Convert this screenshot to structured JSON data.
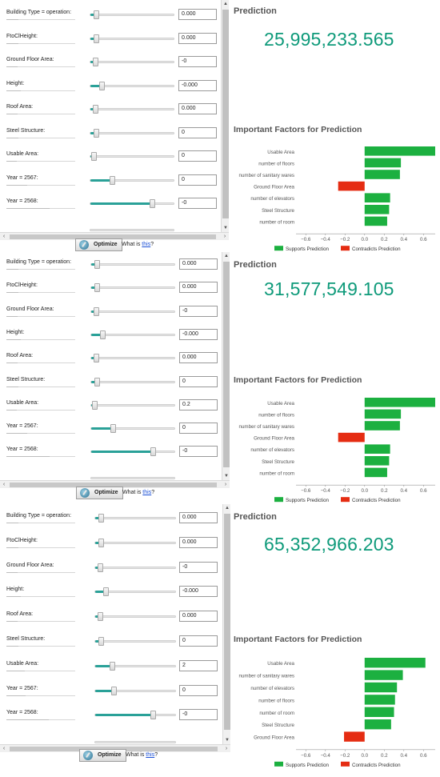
{
  "optimize_label": "Optimize",
  "whatis_prefix": "What is ",
  "whatis_link": "this",
  "whatis_suffix": "?",
  "prediction_title": "Prediction",
  "factors_title": "Important Factors for Prediction",
  "legend_supports": "Supports Prediction",
  "legend_contradicts": "Contradicts Prediction",
  "colors": {
    "supports": "#1cb040",
    "contradicts": "#e52c12",
    "prediction_value": "#0e9a7a",
    "slider_fill": "#2aa198"
  },
  "panels": [
    {
      "prediction": "25,995,233.565",
      "rows": [
        {
          "label": "Building Type = operation:",
          "value": "0.000",
          "slider": 0.08
        },
        {
          "label": "FtoClHeight:",
          "value": "0.000",
          "slider": 0.08
        },
        {
          "label": "Ground Floor Area:",
          "value": "-0",
          "slider": 0.07
        },
        {
          "label": "Height:",
          "value": "-0.000",
          "slider": 0.14
        },
        {
          "label": "Roof Area:",
          "value": "0.000",
          "slider": 0.07
        },
        {
          "label": "Steel Structure:",
          "value": "0",
          "slider": 0.08
        },
        {
          "label": "Usable Area:",
          "value": "0",
          "slider": 0.05
        },
        {
          "label": "Year = 2567:",
          "value": "0",
          "slider": 0.26
        },
        {
          "label": "Year = 2568:",
          "value": "-0",
          "slider": 0.74
        }
      ],
      "chart_data": {
        "type": "bar",
        "categories": [
          "Usable Area",
          "number of floors",
          "number of sanitary wares",
          "Ground Floor Area",
          "number of elevators",
          "Steel Structure",
          "number of room"
        ],
        "values": [
          0.72,
          0.37,
          0.36,
          -0.27,
          0.26,
          0.25,
          0.23
        ],
        "xlim": [
          -0.7,
          0.72
        ],
        "xticks": [
          -0.6,
          -0.4,
          -0.2,
          0.0,
          0.2,
          0.4,
          0.6
        ],
        "xtick_labels": [
          "−0.6",
          "−0.4",
          "−0.2",
          "0.0",
          "0.2",
          "0.4",
          "0.6"
        ],
        "legend": "bottom"
      }
    },
    {
      "prediction": "31,577,549.105",
      "rows": [
        {
          "label": "Building Type = operation:",
          "value": "0.000",
          "slider": 0.08
        },
        {
          "label": "FtoClHeight:",
          "value": "0.000",
          "slider": 0.08
        },
        {
          "label": "Ground Floor Area:",
          "value": "-0",
          "slider": 0.07
        },
        {
          "label": "Height:",
          "value": "-0.000",
          "slider": 0.14
        },
        {
          "label": "Roof Area:",
          "value": "0.000",
          "slider": 0.07
        },
        {
          "label": "Steel Structure:",
          "value": "0",
          "slider": 0.08
        },
        {
          "label": "Usable Area:",
          "value": "0.2",
          "slider": 0.05
        },
        {
          "label": "Year = 2567:",
          "value": "0",
          "slider": 0.26
        },
        {
          "label": "Year = 2568:",
          "value": "-0",
          "slider": 0.74
        }
      ],
      "chart_data": {
        "type": "bar",
        "categories": [
          "Usable Area",
          "number of floors",
          "number of sanitary wares",
          "Ground Floor Area",
          "number of elevators",
          "Steel Structure",
          "number of room"
        ],
        "values": [
          0.72,
          0.37,
          0.36,
          -0.27,
          0.26,
          0.25,
          0.23
        ],
        "xlim": [
          -0.7,
          0.72
        ],
        "xticks": [
          -0.6,
          -0.4,
          -0.2,
          0.0,
          0.2,
          0.4,
          0.6
        ],
        "xtick_labels": [
          "−0.6",
          "−0.4",
          "−0.2",
          "0.0",
          "0.2",
          "0.4",
          "0.6"
        ],
        "legend": "bottom"
      }
    },
    {
      "prediction": "65,352,966.203",
      "rows": [
        {
          "label": "Building Type = operation:",
          "value": "0.000",
          "slider": 0.08
        },
        {
          "label": "FtoClHeight:",
          "value": "0.000",
          "slider": 0.08
        },
        {
          "label": "Ground Floor Area:",
          "value": "-0",
          "slider": 0.07
        },
        {
          "label": "Height:",
          "value": "-0.000",
          "slider": 0.14
        },
        {
          "label": "Roof Area:",
          "value": "0.000",
          "slider": 0.07
        },
        {
          "label": "Steel Structure:",
          "value": "0",
          "slider": 0.08
        },
        {
          "label": "Usable Area:",
          "value": "2",
          "slider": 0.22
        },
        {
          "label": "Year = 2567:",
          "value": "0",
          "slider": 0.24
        },
        {
          "label": "Year = 2568:",
          "value": "-0",
          "slider": 0.72
        }
      ],
      "chart_data": {
        "type": "bar",
        "categories": [
          "Usable Area",
          "number of sanitary wares",
          "number of elevators",
          "number of floors",
          "number of room",
          "Steel Structure",
          "Ground Floor Area"
        ],
        "values": [
          0.62,
          0.39,
          0.33,
          0.31,
          0.3,
          0.27,
          -0.21
        ],
        "xlim": [
          -0.7,
          0.72
        ],
        "xticks": [
          -0.6,
          -0.4,
          -0.2,
          0.0,
          0.2,
          0.4,
          0.6
        ],
        "xtick_labels": [
          "−0.6",
          "−0.4",
          "−0.2",
          "0.0",
          "0.2",
          "0.4",
          "0.6"
        ],
        "legend": "bottom"
      }
    }
  ]
}
